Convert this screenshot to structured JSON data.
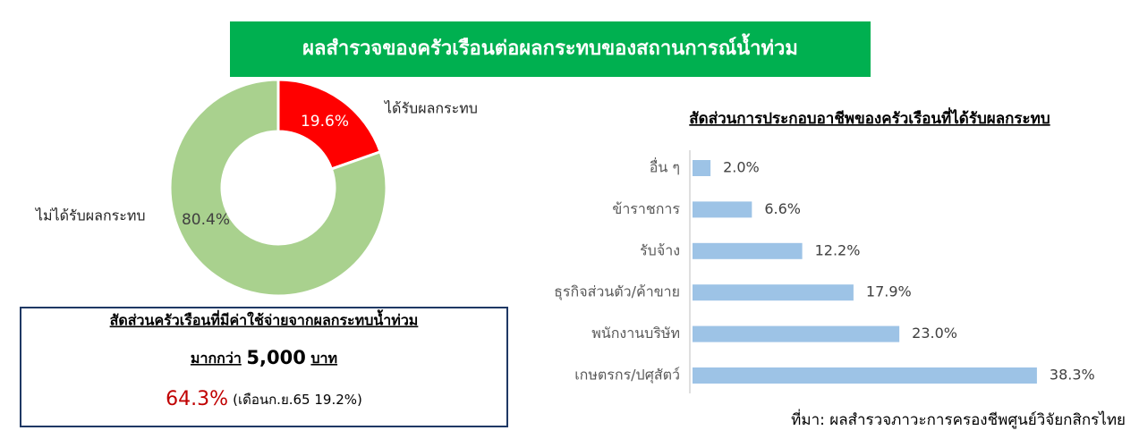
{
  "header": {
    "title": "ผลสำรวจของครัวเรือนต่อผลกระทบของสถานการณ์น้ำท่วม"
  },
  "chart_data": [
    {
      "type": "donut",
      "categories": [
        "ได้รับผลกระทบ",
        "ไม่ได้รับผลกระทบ"
      ],
      "values": [
        19.6,
        80.4
      ],
      "value_labels": [
        "19.6%",
        "80.4%"
      ],
      "colors": [
        "#ff0000",
        "#a9d18e"
      ]
    },
    {
      "type": "bar",
      "orientation": "horizontal",
      "title": "สัดส่วนการประกอบอาชีพของครัวเรือนที่ได้รับผลกระทบ",
      "categories": [
        "อื่น ๆ",
        "ข้าราชการ",
        "รับจ้าง",
        "ธุรกิจส่วนตัว/ค้าขาย",
        "พนักงานบริษัท",
        "เกษตรกร/ปศุสัตว์"
      ],
      "values": [
        2.0,
        6.6,
        12.2,
        17.9,
        23.0,
        38.3
      ],
      "value_labels": [
        "2.0%",
        "6.6%",
        "12.2%",
        "17.9%",
        "23.0%",
        "38.3%"
      ],
      "color": "#9dc3e6"
    }
  ],
  "callout": {
    "title": "สัดส่วนครัวเรือนที่มีค่าใช้จ่ายจากผลกระทบน้ำท่วม",
    "prefix": "มากกว่า",
    "amount": "5,000",
    "unit": "บาท",
    "value": "64.3%",
    "note": "(เดือนก.ย.65 19.2%)"
  },
  "source": "ที่มา: ผลสำรวจภาวะการครองชีพศูนย์วิจัยกสิกรไทย"
}
